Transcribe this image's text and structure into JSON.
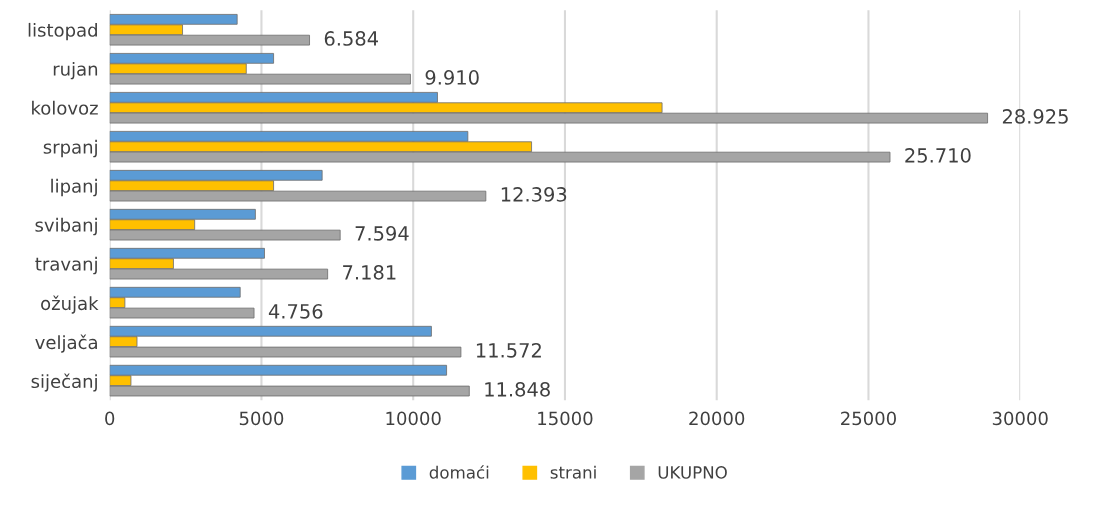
{
  "chart_data": {
    "type": "bar",
    "orientation": "horizontal",
    "categories": [
      "listopad",
      "rujan",
      "kolovoz",
      "srpanj",
      "lipanj",
      "svibanj",
      "travanj",
      "ožujak",
      "veljača",
      "siječanj"
    ],
    "series": [
      {
        "name": "domaći",
        "color": "#5b9bd5",
        "values": [
          4200,
          5400,
          10800,
          11800,
          7000,
          4800,
          5100,
          4300,
          10600,
          11100
        ]
      },
      {
        "name": "strani",
        "color": "#ffc000",
        "values": [
          2400,
          4500,
          18200,
          13900,
          5400,
          2800,
          2100,
          500,
          900,
          700
        ]
      },
      {
        "name": "UKUPNO",
        "color": "#a5a5a5",
        "values": [
          6584,
          9910,
          28925,
          25710,
          12393,
          7594,
          7181,
          4756,
          11572,
          11848
        ],
        "value_labels": [
          "6.584",
          "9.910",
          "28.925",
          "25.710",
          "12.393",
          "7.594",
          "7.181",
          "4.756",
          "11.572",
          "11.848"
        ]
      }
    ],
    "xlim": [
      0,
      30000
    ],
    "xticks": [
      0,
      5000,
      10000,
      15000,
      20000,
      25000,
      30000
    ],
    "grid": "x",
    "legend": "bottom"
  }
}
